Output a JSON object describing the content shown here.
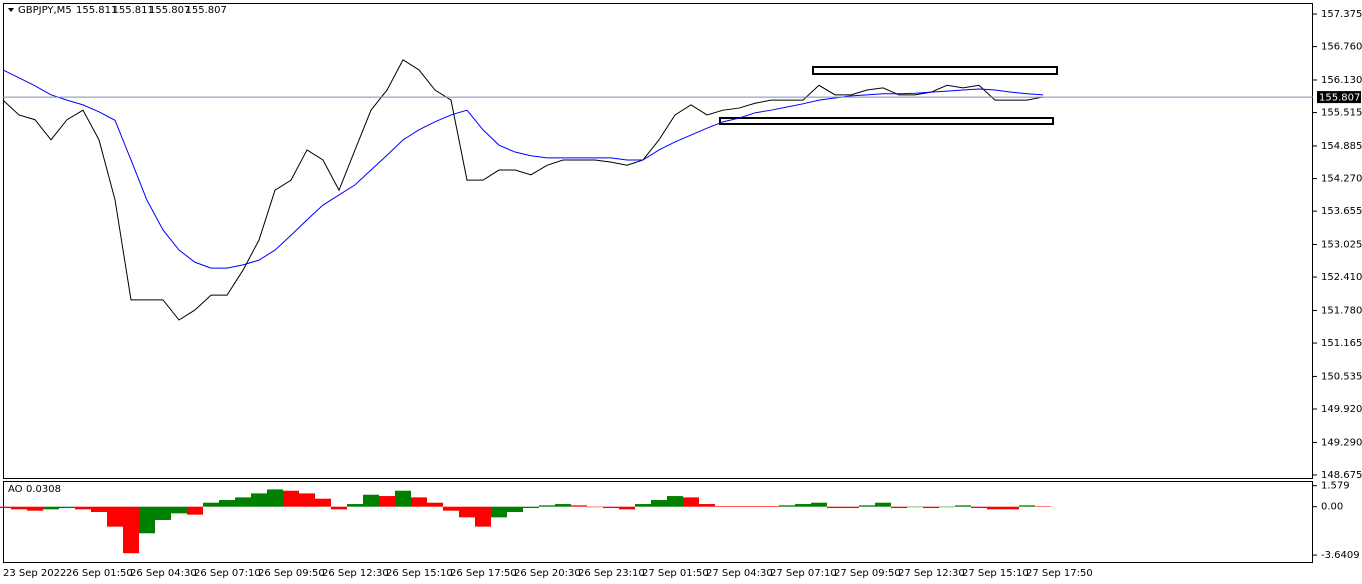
{
  "chart_data": [
    {
      "type": "line",
      "title": "GBPJPY,M5",
      "quotes": [
        155.811,
        155.811,
        155.807,
        155.807
      ],
      "current_price": 155.807,
      "ylim": [
        148.618,
        157.564
      ],
      "yticks": [
        157.375,
        {
          "value": 156.76,
          "label": "156.760"
        },
        {
          "value": 156.13,
          "label": "156.130"
        },
        155.515,
        154.885,
        {
          "value": 154.27,
          "label": "154.270"
        },
        153.655,
        153.025,
        {
          "value": 152.41,
          "label": "152.410"
        },
        {
          "value": 151.78,
          "label": "151.780"
        },
        151.165,
        150.535,
        {
          "value": 149.92,
          "label": "149.920"
        },
        {
          "value": 149.29,
          "label": "149.290"
        },
        148.675
      ],
      "x_labels": [
        "23 Sep 2022",
        "26 Sep 01:50",
        "26 Sep 04:30",
        "26 Sep 07:10",
        "26 Sep 09:50",
        "26 Sep 12:30",
        "26 Sep 15:10",
        "26 Sep 17:50",
        "26 Sep 20:30",
        "26 Sep 23:10",
        "27 Sep 01:50",
        "27 Sep 04:30",
        "27 Sep 07:10",
        "27 Sep 09:50",
        "27 Sep 12:30",
        "27 Sep 15:10",
        "27 Sep 17:50"
      ],
      "series": [
        {
          "color": "#000000",
          "values": [
            155.75,
            155.47,
            155.38,
            155.0,
            155.38,
            155.56,
            155.0,
            153.87,
            151.98,
            151.98,
            151.98,
            151.6,
            151.79,
            152.07,
            152.07,
            152.54,
            153.11,
            154.05,
            154.24,
            154.81,
            154.62,
            154.05,
            154.81,
            155.56,
            155.94,
            156.51,
            156.32,
            155.94,
            155.75,
            154.24,
            154.24,
            154.43,
            154.43,
            154.34,
            154.52,
            154.62,
            154.62,
            154.62,
            154.58,
            154.52,
            154.62,
            155.0,
            155.47,
            155.66,
            155.47,
            155.56,
            155.6,
            155.69,
            155.75,
            155.75,
            155.75,
            156.03,
            155.85,
            155.85,
            155.94,
            155.98,
            155.85,
            155.85,
            155.9,
            156.03,
            155.98,
            156.03,
            155.75,
            155.75,
            155.75,
            155.81
          ]
        },
        {
          "color": "#0000ff",
          "values": [
            156.32,
            156.17,
            156.02,
            155.85,
            155.75,
            155.66,
            155.53,
            155.37,
            154.62,
            153.86,
            153.3,
            152.92,
            152.69,
            152.58,
            152.58,
            152.64,
            152.73,
            152.92,
            153.2,
            153.49,
            153.77,
            153.96,
            154.15,
            154.43,
            154.71,
            155.0,
            155.19,
            155.34,
            155.47,
            155.56,
            155.19,
            154.9,
            154.77,
            154.7,
            154.66,
            154.66,
            154.66,
            154.66,
            154.66,
            154.62,
            154.62,
            154.81,
            154.96,
            155.09,
            155.22,
            155.34,
            155.41,
            155.51,
            155.56,
            155.62,
            155.68,
            155.75,
            155.79,
            155.83,
            155.85,
            155.87,
            155.87,
            155.88,
            155.9,
            155.92,
            155.94,
            155.96,
            155.94,
            155.9,
            155.87,
            155.85
          ]
        }
      ]
    },
    {
      "type": "bar",
      "title": "AO",
      "current": 0.0308,
      "up_color": "#008000",
      "down_color": "#ff0000",
      "ylim": [
        -4.16,
        1.857
      ],
      "yticks": [
        1.579,
        {
          "value": 0,
          "label": "0.00"
        },
        -3.6409
      ],
      "values": [
        -0.1,
        -0.2,
        -0.3,
        -0.2,
        -0.1,
        -0.2,
        -0.4,
        -1.5,
        -3.5,
        -2.0,
        -1.0,
        -0.5,
        -0.6,
        0.3,
        0.5,
        0.7,
        1.0,
        1.3,
        1.2,
        1.0,
        0.6,
        -0.2,
        0.2,
        0.9,
        0.8,
        1.2,
        0.7,
        0.3,
        -0.3,
        -0.8,
        -1.5,
        -0.8,
        -0.4,
        -0.1,
        0.1,
        0.2,
        0.1,
        0.0,
        -0.1,
        -0.2,
        0.2,
        0.5,
        0.8,
        0.7,
        0.2,
        0.05,
        0.05,
        0.05,
        0.05,
        0.1,
        0.2,
        0.3,
        -0.1,
        -0.1,
        0.1,
        0.3,
        -0.1,
        0.0,
        -0.1,
        0.0,
        0.1,
        -0.1,
        -0.2,
        -0.2,
        0.1,
        0.03
      ]
    }
  ]
}
